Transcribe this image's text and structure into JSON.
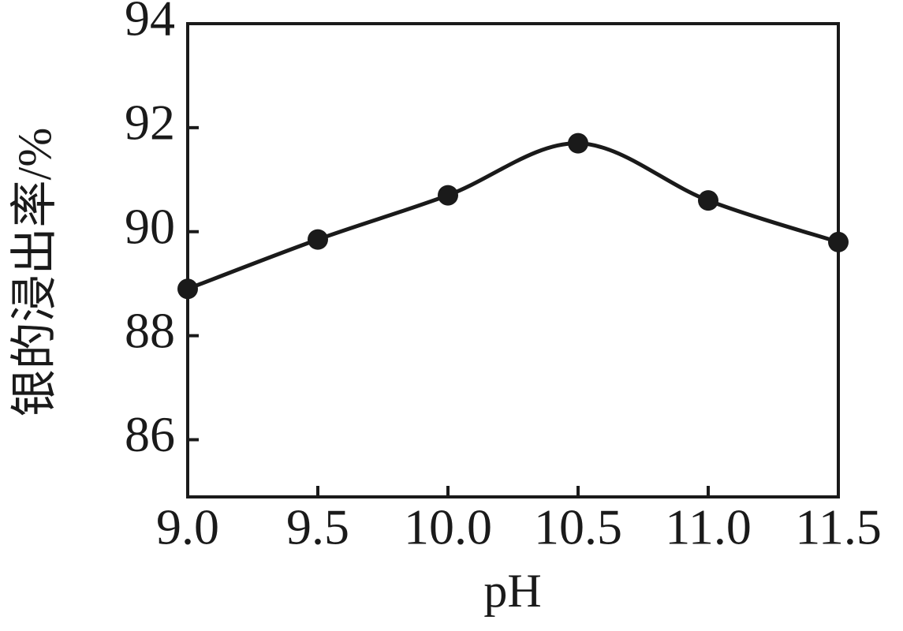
{
  "chart_data": {
    "type": "line",
    "x_label": "pH",
    "y_label": "银的浸出率/%",
    "x": [
      9,
      9.5,
      10,
      10.5,
      11,
      11.5
    ],
    "series": [
      {
        "color": "#1a1a1a",
        "values": [
          88.9,
          89.85,
          90.7,
          91.7,
          90.6,
          89.8
        ]
      }
    ],
    "xlim": [
      9,
      11.5
    ],
    "xticks": [
      {
        "value": 9,
        "label": "9.0"
      },
      9.5,
      {
        "value": 10,
        "label": "10.0"
      },
      10.5,
      {
        "value": 11,
        "label": "11.0"
      },
      11.5
    ],
    "ylim": [
      84.9,
      94
    ],
    "yticks": [
      86,
      88,
      90,
      92,
      94
    ],
    "grid": false
  }
}
